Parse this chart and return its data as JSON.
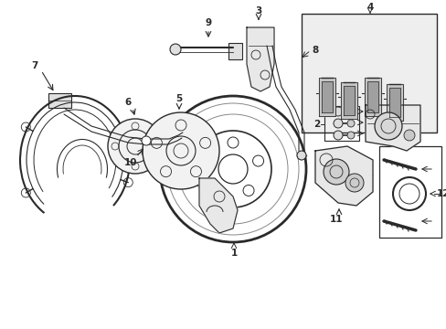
{
  "bg_color": "#ffffff",
  "line_color": "#2a2a2a",
  "gray_fill": "#e8e8e8",
  "light_fill": "#f2f2f2",
  "figsize": [
    4.89,
    3.6
  ],
  "dpi": 100
}
